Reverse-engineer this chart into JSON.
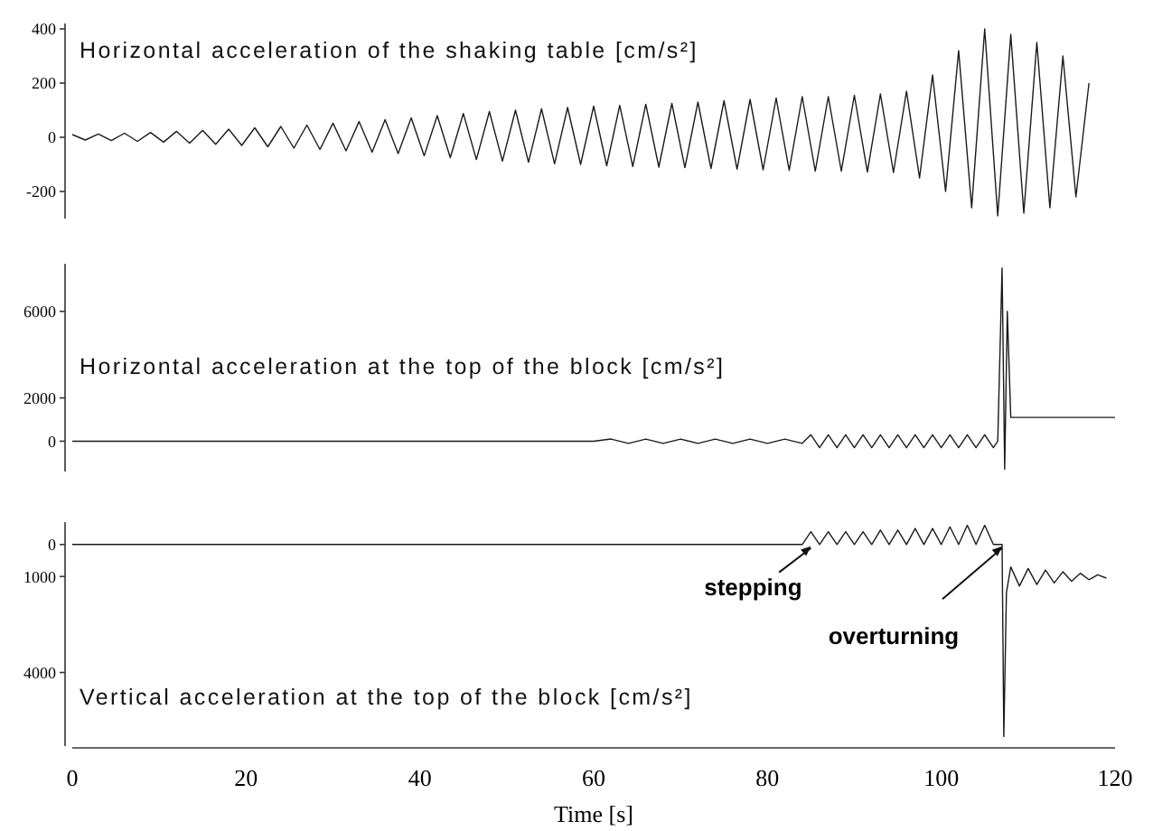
{
  "chart_data": [
    {
      "type": "line",
      "title": "Horizontal acceleration of the shaking table [cm/s²]",
      "xlim": [
        0,
        120
      ],
      "ylim": [
        -300,
        420
      ],
      "yticks": [
        400,
        200,
        0,
        -200
      ],
      "tick_labels": "y",
      "color": "#1a1a1a",
      "x": [
        0,
        1.5,
        3,
        4.5,
        6,
        7.5,
        9,
        10.5,
        12,
        13.5,
        15,
        16.5,
        18,
        19.5,
        21,
        22.5,
        24,
        25.5,
        27,
        28.5,
        30,
        31.5,
        33,
        34.5,
        36,
        37.5,
        39,
        40.5,
        42,
        43.5,
        45,
        46.5,
        48,
        49.5,
        51,
        52.5,
        54,
        55.5,
        57,
        58.5,
        60,
        61.5,
        63,
        64.5,
        66,
        67.5,
        69,
        70.5,
        72,
        73.5,
        75,
        76.5,
        78,
        79.5,
        81,
        82.5,
        84,
        85.5,
        87,
        88.5,
        90,
        91.5,
        93,
        94.5,
        96,
        97.5,
        99,
        100.5,
        102,
        103.5,
        105,
        106.5,
        108,
        109.5,
        111,
        112.5,
        114,
        115.5,
        117
      ],
      "values": [
        10,
        -10,
        12,
        -12,
        15,
        -15,
        18,
        -18,
        22,
        -22,
        26,
        -26,
        30,
        -30,
        35,
        -35,
        40,
        -40,
        45,
        -45,
        52,
        -50,
        58,
        -55,
        65,
        -60,
        72,
        -68,
        80,
        -75,
        88,
        -82,
        95,
        -88,
        100,
        -92,
        105,
        -98,
        110,
        -100,
        115,
        -105,
        118,
        -108,
        122,
        -110,
        125,
        -112,
        130,
        -115,
        135,
        -118,
        140,
        -120,
        145,
        -122,
        150,
        -125,
        150,
        -125,
        155,
        -128,
        160,
        -130,
        170,
        -150,
        230,
        -200,
        320,
        -260,
        400,
        -290,
        380,
        -280,
        350,
        -260,
        300,
        -220,
        200
      ]
    },
    {
      "type": "line",
      "title": "Horizontal acceleration at the top of the block [cm/s²]",
      "xlim": [
        0,
        120
      ],
      "ylim": [
        -1400,
        8200
      ],
      "yticks": [
        6000,
        2000,
        0
      ],
      "tick_labels": "y",
      "color": "#1a1a1a",
      "x": [
        0,
        60,
        62,
        64,
        66,
        68,
        70,
        72,
        74,
        76,
        78,
        80,
        82,
        84,
        85,
        86,
        87,
        88,
        89,
        90,
        91,
        92,
        93,
        94,
        95,
        96,
        97,
        98,
        99,
        100,
        101,
        102,
        103,
        104,
        105,
        106,
        106.5,
        107,
        107.3,
        107.6,
        108,
        120
      ],
      "values": [
        0,
        0,
        100,
        -100,
        100,
        -100,
        100,
        -100,
        100,
        -100,
        100,
        -100,
        100,
        -100,
        300,
        -300,
        300,
        -300,
        300,
        -300,
        300,
        -300,
        300,
        -300,
        300,
        -300,
        300,
        -300,
        300,
        -300,
        300,
        -300,
        300,
        -300,
        300,
        -300,
        0,
        8000,
        -1300,
        6000,
        1100,
        1100
      ]
    },
    {
      "type": "line",
      "title": "Vertical acceleration at the top of the block [cm/s²]",
      "xlabel": "Time [s]",
      "xlim": [
        0,
        120
      ],
      "ylim": [
        6300,
        -700
      ],
      "xticks": [
        0,
        20,
        40,
        60,
        80,
        100,
        120
      ],
      "yticks": [
        0,
        1000,
        4000
      ],
      "color": "#1a1a1a",
      "annotations": [
        {
          "text": "stepping",
          "x": 85,
          "y": 0
        },
        {
          "text": "overturning",
          "x": 107,
          "y": 0
        }
      ],
      "x": [
        0,
        84,
        85,
        86,
        87,
        88,
        89,
        90,
        91,
        92,
        93,
        94,
        95,
        96,
        97,
        98,
        99,
        100,
        101,
        102,
        103,
        104,
        105,
        106,
        107,
        107.2,
        107.5,
        108,
        109,
        110,
        111,
        112,
        113,
        114,
        115,
        116,
        117,
        118,
        119
      ],
      "values": [
        0,
        0,
        -400,
        0,
        -400,
        0,
        -400,
        0,
        -400,
        0,
        -450,
        0,
        -450,
        0,
        -500,
        0,
        -500,
        0,
        -550,
        0,
        -600,
        0,
        -600,
        0,
        0,
        6000,
        1500,
        700,
        1300,
        750,
        1250,
        800,
        1200,
        850,
        1150,
        900,
        1100,
        950,
        1050
      ]
    }
  ]
}
